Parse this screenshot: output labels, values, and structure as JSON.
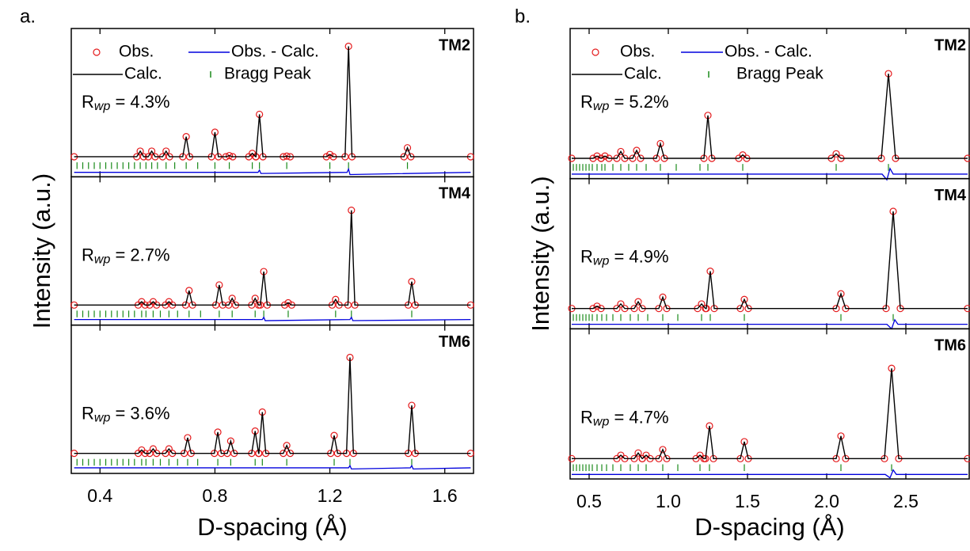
{
  "chart_data": [
    {
      "type": "line",
      "panel_label": "a.",
      "x_label": "D-spacing (Å)",
      "y_label": "Intensity (a.u.)",
      "xlim": [
        0.3,
        1.7
      ],
      "xticks": [
        0.4,
        0.8,
        1.2,
        1.6
      ],
      "ylim": [
        -17,
        116
      ],
      "series": [
        {
          "name": "Obs.",
          "color": "#e41a1c"
        },
        {
          "name": "Calc.",
          "color": "#000000"
        },
        {
          "name": "Obs. - Calc.",
          "color": "#0000dd"
        },
        {
          "name": "Bragg Peak",
          "color": "#1a8a1a"
        }
      ],
      "subplots": [
        {
          "label": "TM2",
          "rwp": {
            "symbol": "R",
            "subscript": "wp",
            "text": " = 4.3%"
          },
          "x": [
            0.31,
            0.528,
            0.54,
            0.552,
            0.568,
            0.58,
            0.592,
            0.618,
            0.63,
            0.642,
            0.688,
            0.7,
            0.712,
            0.788,
            0.8,
            0.812,
            0.838,
            0.85,
            0.862,
            0.918,
            0.93,
            0.942,
            0.943,
            0.955,
            0.967,
            1.038,
            1.05,
            1.062,
            1.188,
            1.2,
            1.212,
            1.253,
            1.265,
            1.277,
            1.458,
            1.47,
            1.482,
            1.69
          ],
          "obs": [
            1,
            1,
            6,
            1,
            1,
            6,
            1,
            1,
            6,
            1,
            1,
            19,
            1,
            1,
            23,
            1,
            1,
            2,
            1,
            1,
            4,
            1,
            1,
            39,
            1,
            1,
            1.5,
            1,
            1,
            3,
            1,
            1,
            100,
            1,
            1,
            9,
            1,
            1
          ],
          "calc": [
            1,
            1,
            6,
            1,
            1,
            6,
            1,
            1,
            6,
            1,
            1,
            19,
            1,
            1,
            23,
            1,
            1,
            2,
            1,
            1,
            4,
            1,
            1,
            39,
            1,
            1,
            1.5,
            1,
            1,
            3,
            1,
            1,
            100,
            1,
            1,
            9,
            1,
            1
          ],
          "diff_x": [
            0.31,
            0.95,
            0.955,
            0.96,
            1.26,
            1.265,
            1.27,
            1.69
          ],
          "diff": [
            -13,
            -13,
            -11,
            -14,
            -13,
            -10,
            -15,
            -13
          ],
          "bragg": [
            0.32,
            0.34,
            0.36,
            0.38,
            0.4,
            0.42,
            0.44,
            0.46,
            0.48,
            0.5,
            0.52,
            0.54,
            0.56,
            0.58,
            0.6,
            0.63,
            0.66,
            0.7,
            0.74,
            0.8,
            0.85,
            0.93,
            0.955,
            1.05,
            1.2,
            1.265,
            1.47
          ]
        },
        {
          "label": "TM4",
          "rwp": {
            "symbol": "R",
            "subscript": "wp",
            "text": " = 2.7%"
          },
          "x": [
            0.31,
            0.533,
            0.545,
            0.557,
            0.573,
            0.585,
            0.597,
            0.628,
            0.64,
            0.652,
            0.698,
            0.71,
            0.722,
            0.803,
            0.815,
            0.827,
            0.848,
            0.86,
            0.872,
            0.928,
            0.94,
            0.952,
            0.958,
            0.97,
            0.982,
            1.043,
            1.055,
            1.067,
            1.208,
            1.22,
            1.232,
            1.263,
            1.275,
            1.287,
            1.473,
            1.485,
            1.497,
            1.69
          ],
          "obs": [
            1,
            1,
            4,
            1,
            1,
            4,
            1,
            1,
            4,
            1,
            1,
            14,
            1,
            1,
            19,
            1,
            1,
            7,
            1,
            1,
            7,
            1,
            1,
            31,
            1,
            1,
            3,
            1,
            1,
            6,
            1,
            1,
            86,
            1,
            1,
            22,
            1,
            1
          ],
          "calc": [
            1,
            1,
            4,
            1,
            1,
            4,
            1,
            1,
            4,
            1,
            1,
            14,
            1,
            1,
            19,
            1,
            1,
            7,
            1,
            1,
            7,
            1,
            1,
            31,
            1,
            1,
            3,
            1,
            1,
            6,
            1,
            1,
            86,
            1,
            1,
            22,
            1,
            1
          ],
          "diff_x": [
            0.31,
            0.965,
            0.97,
            0.975,
            1.27,
            1.275,
            1.28,
            1.69
          ],
          "diff": [
            -12,
            -12,
            -10,
            -13,
            -12,
            -10,
            -13,
            -12
          ],
          "bragg": [
            0.32,
            0.34,
            0.36,
            0.38,
            0.4,
            0.42,
            0.44,
            0.46,
            0.48,
            0.5,
            0.52,
            0.545,
            0.56,
            0.585,
            0.61,
            0.64,
            0.67,
            0.71,
            0.75,
            0.815,
            0.86,
            0.94,
            0.97,
            1.055,
            1.22,
            1.275,
            1.485
          ]
        },
        {
          "label": "TM6",
          "rwp": {
            "symbol": "R",
            "subscript": "wp",
            "text": " = 3.6%"
          },
          "x": [
            0.31,
            0.533,
            0.545,
            0.557,
            0.573,
            0.585,
            0.597,
            0.628,
            0.64,
            0.652,
            0.693,
            0.705,
            0.717,
            0.798,
            0.81,
            0.822,
            0.843,
            0.855,
            0.867,
            0.928,
            0.94,
            0.952,
            0.953,
            0.965,
            0.977,
            1.038,
            1.05,
            1.062,
            1.203,
            1.215,
            1.227,
            1.258,
            1.27,
            1.282,
            1.473,
            1.485,
            1.497,
            1.69
          ],
          "obs": [
            1,
            1,
            4,
            1,
            1,
            5,
            1,
            1,
            5,
            1,
            1,
            15,
            1,
            1,
            20,
            1,
            1,
            12,
            1,
            1,
            21,
            1,
            1,
            38,
            1,
            1,
            8,
            1,
            1,
            17,
            1,
            1,
            87,
            1,
            1,
            44,
            1,
            1
          ],
          "calc": [
            1,
            1,
            4,
            1,
            1,
            5,
            1,
            1,
            5,
            1,
            1,
            15,
            1,
            1,
            20,
            1,
            1,
            12,
            1,
            1,
            21,
            1,
            1,
            38,
            1,
            1,
            8,
            1,
            1,
            17,
            1,
            1,
            87,
            1,
            1,
            44,
            1,
            1
          ],
          "diff_x": [
            0.31,
            1.265,
            1.27,
            1.275,
            1.48,
            1.485,
            1.49,
            1.69
          ],
          "diff": [
            -12,
            -12,
            -10,
            -13,
            -12,
            -10,
            -13,
            -12
          ],
          "bragg": [
            0.32,
            0.34,
            0.36,
            0.38,
            0.4,
            0.42,
            0.44,
            0.46,
            0.48,
            0.5,
            0.52,
            0.545,
            0.56,
            0.585,
            0.61,
            0.64,
            0.67,
            0.705,
            0.74,
            0.81,
            0.855,
            0.94,
            0.965,
            1.05,
            1.215,
            1.27,
            1.485
          ]
        }
      ]
    },
    {
      "type": "line",
      "panel_label": "b.",
      "x_label": "D-spacing (Å)",
      "y_label": "Intensity (a.u.)",
      "xlim": [
        0.38,
        2.9
      ],
      "xticks": [
        0.5,
        {
          "value": 1,
          "label": "1.0"
        },
        1.5,
        {
          "value": 2,
          "label": "2.0"
        },
        2.5
      ],
      "ylim": [
        -17,
        116
      ],
      "series": [
        {
          "name": "Obs.",
          "color": "#e41a1c"
        },
        {
          "name": "Calc.",
          "color": "#000000"
        },
        {
          "name": "Obs. - Calc.",
          "color": "#0000dd"
        },
        {
          "name": "Bragg Peak",
          "color": "#1a8a1a"
        }
      ],
      "subplots": [
        {
          "label": "TM2",
          "rwp": {
            "symbol": "R",
            "subscript": "wp",
            "text": " = 5.2%"
          },
          "x": [
            0.39,
            0.525,
            0.55,
            0.575,
            0.576,
            0.6,
            0.625,
            0.675,
            0.7,
            0.725,
            0.775,
            0.8,
            0.825,
            0.925,
            0.95,
            0.975,
            1.225,
            1.25,
            1.275,
            1.445,
            1.47,
            1.495,
            2.03,
            2.06,
            2.09,
            2.345,
            2.39,
            2.435,
            2.89
          ],
          "obs": [
            1,
            1,
            3,
            1,
            1,
            3,
            1,
            1,
            7,
            1,
            1,
            8,
            1,
            1,
            14,
            1,
            1,
            39,
            1,
            1,
            4,
            1,
            1,
            5,
            1,
            1,
            76,
            1,
            1
          ],
          "calc": [
            1,
            1,
            3,
            1,
            1,
            3,
            1,
            1,
            7,
            1,
            1,
            8,
            1,
            1,
            14,
            1,
            1,
            39,
            1,
            1,
            4,
            1,
            1,
            5,
            1,
            1,
            76,
            1,
            1
          ],
          "diff_x": [
            0.39,
            2.35,
            2.38,
            2.4,
            2.42,
            2.89
          ],
          "diff": [
            -13,
            -13,
            -18,
            -8,
            -13,
            -13
          ],
          "bragg": [
            0.4,
            0.42,
            0.44,
            0.46,
            0.48,
            0.5,
            0.52,
            0.55,
            0.58,
            0.6,
            0.65,
            0.7,
            0.75,
            0.8,
            0.86,
            0.95,
            1.05,
            1.2,
            1.25,
            1.47,
            2.06,
            2.39
          ]
        },
        {
          "label": "TM4",
          "rwp": {
            "symbol": "R",
            "subscript": "wp",
            "text": " = 4.9%"
          },
          "x": [
            0.39,
            0.525,
            0.55,
            0.575,
            0.675,
            0.7,
            0.725,
            0.785,
            0.81,
            0.835,
            0.94,
            0.965,
            0.99,
            1.185,
            1.21,
            1.235,
            1.24,
            1.265,
            1.29,
            1.455,
            1.48,
            1.505,
            2.06,
            2.09,
            2.12,
            2.375,
            2.42,
            2.465,
            2.89
          ],
          "obs": [
            1,
            1,
            3,
            1,
            1,
            5,
            1,
            1,
            7,
            1,
            1,
            11,
            1,
            1,
            5,
            1,
            1,
            34,
            1,
            1,
            9,
            1,
            1,
            14,
            1,
            1,
            87,
            1,
            1
          ],
          "calc": [
            1,
            1,
            3,
            1,
            1,
            5,
            1,
            1,
            7,
            1,
            1,
            11,
            1,
            1,
            5,
            1,
            1,
            34,
            1,
            1,
            9,
            1,
            1,
            14,
            1,
            1,
            87,
            1,
            1
          ],
          "diff_x": [
            0.39,
            2.38,
            2.41,
            2.43,
            2.45,
            2.89
          ],
          "diff": [
            -13,
            -13,
            -17,
            -9,
            -13,
            -13
          ],
          "bragg": [
            0.4,
            0.42,
            0.44,
            0.46,
            0.48,
            0.5,
            0.52,
            0.55,
            0.58,
            0.61,
            0.65,
            0.7,
            0.76,
            0.81,
            0.87,
            0.965,
            1.06,
            1.21,
            1.265,
            1.48,
            2.09,
            2.42
          ]
        },
        {
          "label": "TM6",
          "rwp": {
            "symbol": "R",
            "subscript": "wp",
            "text": " = 4.7%"
          },
          "x": [
            0.39,
            0.675,
            0.7,
            0.725,
            0.785,
            0.81,
            0.835,
            0.836,
            0.86,
            0.885,
            0.94,
            0.965,
            0.99,
            1.175,
            1.2,
            1.225,
            1.235,
            1.26,
            1.285,
            1.455,
            1.48,
            1.505,
            2.06,
            2.09,
            2.12,
            2.365,
            2.41,
            2.455,
            2.89
          ],
          "obs": [
            1,
            1,
            4,
            1,
            1,
            6,
            1,
            1,
            4,
            1,
            1,
            9,
            1,
            1,
            4,
            1,
            1,
            30,
            1,
            1,
            16,
            1,
            1,
            21,
            1,
            1,
            81,
            1,
            1
          ],
          "calc": [
            1,
            1,
            4,
            1,
            1,
            6,
            1,
            1,
            4,
            1,
            1,
            9,
            1,
            1,
            4,
            1,
            1,
            30,
            1,
            1,
            16,
            1,
            1,
            21,
            1,
            1,
            81,
            1,
            1
          ],
          "diff_x": [
            0.39,
            2.37,
            2.4,
            2.42,
            2.44,
            2.89
          ],
          "diff": [
            -13,
            -13,
            -16,
            -9,
            -13,
            -13
          ],
          "bragg": [
            0.4,
            0.42,
            0.44,
            0.46,
            0.48,
            0.5,
            0.52,
            0.55,
            0.58,
            0.61,
            0.65,
            0.7,
            0.76,
            0.81,
            0.86,
            0.965,
            1.06,
            1.2,
            1.26,
            1.48,
            2.09,
            2.41
          ]
        }
      ]
    }
  ]
}
